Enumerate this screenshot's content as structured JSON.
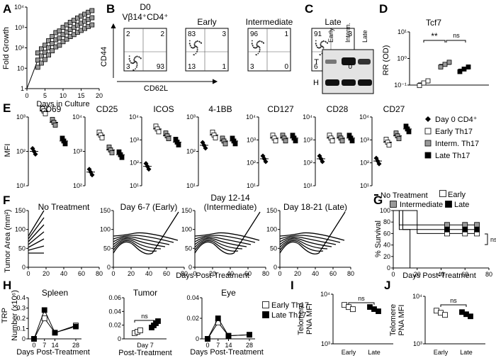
{
  "figure": {
    "A": {
      "letter": "A",
      "ylabel": "Fold Growth",
      "xlabel": "Days in Culture",
      "yticks": [
        "1",
        "10",
        "10²",
        "10³",
        "10⁴"
      ],
      "xticks": [
        "0",
        "5",
        "10",
        "15",
        "20"
      ]
    },
    "B": {
      "letter": "B",
      "facs_title_line1": "D0",
      "facs_title_line2": "Vβ14⁺CD4⁺",
      "early": "Early",
      "intermediate": "Intermediate",
      "late": "Late",
      "xlabel": "CD62L",
      "ylabel": "CD44",
      "quadrants": [
        {
          "tl": "2",
          "tr": "2",
          "bl": "3",
          "br": "93"
        },
        {
          "tl": "83",
          "tr": "3",
          "bl": "13",
          "br": "1"
        },
        {
          "tl": "96",
          "tr": "1",
          "bl": "3",
          "br": "0"
        },
        {
          "tl": "91",
          "tr": "3",
          "bl": "6",
          "br": "0"
        }
      ]
    },
    "C": {
      "letter": "C",
      "lanes": [
        "Early",
        "Interm.",
        "Late"
      ],
      "band_t": "T",
      "band_h": "H"
    },
    "D": {
      "letter": "D",
      "title": "Tcf7",
      "ylabel": "RR (OD)",
      "sig": "**",
      "ns": "ns",
      "yticks": [
        "10⁻¹",
        "10⁰",
        "10¹"
      ]
    },
    "E": {
      "letter": "E",
      "ylabel": "MFI",
      "panels": [
        {
          "title": "CD69",
          "yticks": [
            "10¹",
            "10²",
            "10³"
          ]
        },
        {
          "title": "CD25",
          "yticks": [
            "10²",
            "10³",
            "10⁴"
          ]
        },
        {
          "title": "ICOS",
          "yticks": [
            "10¹",
            "10²",
            "10³",
            "10⁴"
          ]
        },
        {
          "title": "4-1BB",
          "yticks": [
            "10¹",
            "10²",
            "10³"
          ]
        },
        {
          "title": "CD127",
          "yticks": [
            "10¹",
            "10²",
            "10³",
            "10⁴"
          ]
        },
        {
          "title": "CD28",
          "yticks": [
            "10¹",
            "10²",
            "10³",
            "10⁴"
          ]
        },
        {
          "title": "CD27",
          "yticks": [
            "10¹",
            "10²",
            "10³",
            "10⁴"
          ]
        }
      ],
      "legend": [
        "Day 0 CD4⁺",
        "Early Th17",
        "Interm. Th17",
        "Late Th17"
      ]
    },
    "F": {
      "letter": "F",
      "ylabel": "Tumor Area (mm²)",
      "xlabel": "Days Post-Treatment",
      "yticks": [
        "0",
        "50",
        "100",
        "150"
      ],
      "xticks": [
        "0",
        "20",
        "40",
        "60",
        "80"
      ],
      "panels": [
        {
          "title_line1": "No Treatment",
          "title_line2": ""
        },
        {
          "title_line1": "Day 6-7 (Early)",
          "title_line2": ""
        },
        {
          "title_line1": "Day 12-14",
          "title_line2": "(Intermediate)"
        },
        {
          "title_line1": "Day 18-21 (Late)",
          "title_line2": ""
        }
      ]
    },
    "G": {
      "letter": "G",
      "ylabel": "% Survival",
      "xlabel": "Days Post-Treatment",
      "yticks": [
        "0",
        "20",
        "40",
        "60",
        "80",
        "100"
      ],
      "xticks": [
        "0",
        "20",
        "40",
        "60",
        "80"
      ],
      "legend": [
        "No Treatment",
        "Early",
        "Intermediate",
        "Late"
      ],
      "ns": "ns"
    },
    "H": {
      "letter": "H",
      "ylabel_line1": "TRP",
      "ylabel_line2": "Number (x10⁶)",
      "spleen": {
        "title": "Spleen",
        "yticks": [
          "0",
          "0.1",
          "0.2",
          "0.3",
          "0.4"
        ],
        "xticks": [
          "0",
          "7",
          "14",
          "28"
        ]
      },
      "tumor": {
        "title": "Tumor",
        "yticks": [
          "0",
          "0.02",
          "0.04",
          "0.06"
        ],
        "xtick": "Day 7",
        "ns": "ns"
      },
      "eye": {
        "title": "Eye",
        "yticks": [
          "0",
          "0.02",
          "0.04"
        ],
        "xticks": [
          "0",
          "7",
          "14",
          "28"
        ]
      },
      "xlabel_days": "Days Post-Treatment",
      "xlabel_post": "Post-Treatment",
      "legend": [
        "Early Th17",
        "Late Th17"
      ]
    },
    "I": {
      "letter": "I",
      "ylabel_line1": "Telomere",
      "ylabel_line2": "PNA MFI",
      "yticks": [
        "10³",
        "10⁴"
      ],
      "xticks": [
        "Early",
        "Late"
      ],
      "ns": "ns"
    },
    "J": {
      "letter": "J",
      "ylabel_line1": "Telomere",
      "ylabel_line2": "PNA MFI",
      "yticks": [
        "10³",
        "10⁴"
      ],
      "xticks": [
        "Early",
        "Late"
      ],
      "ns": "ns"
    }
  },
  "chart_data": [
    {
      "type": "scatter",
      "id": "A",
      "xlabel": "Days in Culture",
      "ylabel": "Fold Growth",
      "ylog": true,
      "xlim": [
        0,
        20
      ],
      "ylim": [
        1,
        10000
      ],
      "x": [
        0,
        3,
        4,
        5,
        6,
        7,
        8,
        9,
        10,
        11,
        12,
        13,
        14,
        15,
        16,
        17,
        18
      ],
      "y": [
        1,
        25,
        40,
        60,
        100,
        160,
        250,
        300,
        450,
        600,
        800,
        1000,
        1300,
        1600,
        2000,
        2500,
        3000
      ]
    },
    {
      "type": "bar",
      "id": "D",
      "title": "Tcf7",
      "ylabel": "RR (OD)",
      "ylog": true,
      "categories": [
        "Early",
        "Intermediate",
        "Late"
      ],
      "values": [
        0.12,
        0.6,
        0.4
      ]
    },
    {
      "type": "scatter",
      "id": "E",
      "ylabel": "MFI",
      "ylog": true,
      "categories": [
        "CD69",
        "CD25",
        "ICOS",
        "4-1BB",
        "CD127",
        "CD28",
        "CD27"
      ],
      "series": [
        {
          "name": "Day 0 CD4⁺",
          "values": [
            100,
            250,
            70,
            150,
            150,
            150,
            120
          ]
        },
        {
          "name": "Early Th17",
          "values": [
            1500,
            3000,
            3000,
            300,
            1200,
            1200,
            800
          ]
        },
        {
          "name": "Interm. Th17",
          "values": [
            700,
            1100,
            1500,
            200,
            1200,
            1200,
            1500
          ]
        },
        {
          "name": "Late Th17",
          "values": [
            200,
            800,
            800,
            200,
            1200,
            1200,
            3000
          ]
        }
      ]
    },
    {
      "type": "line",
      "id": "G",
      "ylabel": "% Survival",
      "xlabel": "Days Post-Treatment",
      "xlim": [
        0,
        80
      ],
      "ylim": [
        0,
        100
      ],
      "series": [
        {
          "name": "No Treatment",
          "x": [
            0,
            8,
            8,
            14,
            14
          ],
          "y": [
            100,
            100,
            67,
            67,
            0
          ]
        },
        {
          "name": "Early",
          "x": [
            0,
            20,
            20,
            70
          ],
          "y": [
            100,
            100,
            60,
            60
          ]
        },
        {
          "name": "Intermediate",
          "x": [
            0,
            5,
            5,
            70
          ],
          "y": [
            100,
            100,
            75,
            75
          ]
        },
        {
          "name": "Late",
          "x": [
            0,
            5,
            5,
            70
          ],
          "y": [
            100,
            100,
            67,
            67
          ]
        }
      ]
    },
    {
      "type": "line",
      "id": "H-Spleen",
      "xlabel": "Days Post-Treatment",
      "ylim": [
        0,
        0.4
      ],
      "x": [
        0,
        7,
        14,
        28
      ],
      "series": [
        {
          "name": "Early Th17",
          "values": [
            0,
            0.2,
            0.06,
            0.13
          ]
        },
        {
          "name": "Late Th17",
          "values": [
            0,
            0.28,
            0.06,
            0.12
          ]
        }
      ]
    },
    {
      "type": "line",
      "id": "H-Eye",
      "xlabel": "Days Post-Treatment",
      "ylim": [
        0,
        0.04
      ],
      "x": [
        0,
        7,
        14,
        28
      ],
      "series": [
        {
          "name": "Early Th17",
          "values": [
            0,
            0.016,
            0.003,
            0.004
          ]
        },
        {
          "name": "Late Th17",
          "values": [
            0,
            0.02,
            0.003,
            0.004
          ]
        }
      ]
    },
    {
      "type": "scatter",
      "id": "I",
      "ylabel": "Telomere PNA MFI",
      "ylog": true,
      "categories": [
        "Early",
        "Late"
      ],
      "values": [
        5500,
        5000
      ]
    },
    {
      "type": "scatter",
      "id": "J",
      "ylabel": "Telomere PNA MFI",
      "ylog": true,
      "categories": [
        "Early",
        "Late"
      ],
      "values": [
        4500,
        4200
      ]
    }
  ]
}
